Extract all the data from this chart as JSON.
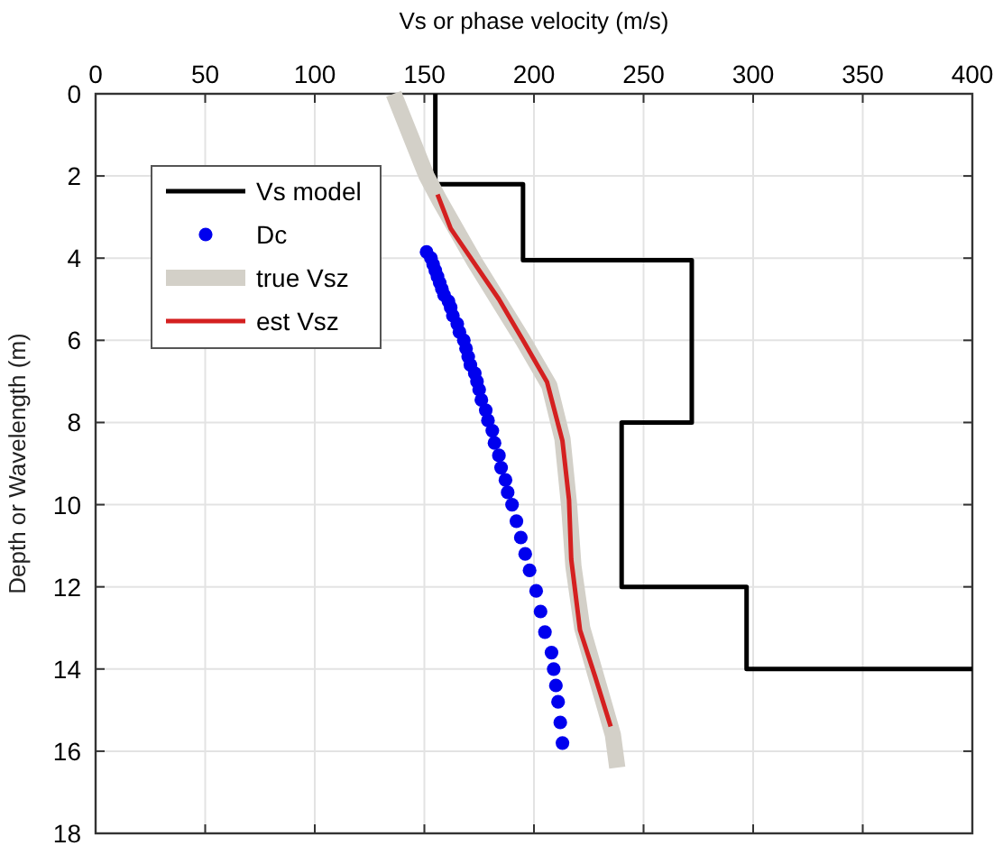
{
  "chart_data": {
    "type": "line",
    "xlabel": "Vs or phase velocity (m/s)",
    "ylabel": "Depth or Wavelength (m)",
    "xlim": [
      0,
      400
    ],
    "xticks": [
      0,
      50,
      100,
      150,
      200,
      250,
      300,
      350,
      400
    ],
    "ylim": [
      18,
      0
    ],
    "yticks": [
      0,
      2,
      4,
      6,
      8,
      10,
      12,
      14,
      16,
      18
    ],
    "grid": true,
    "legend": "top left",
    "series": [
      {
        "name": "Vs model",
        "color": "#000000",
        "x": [
          155,
          155,
          195,
          195,
          272,
          272,
          240,
          240,
          297,
          297,
          400
        ],
        "values": [
          0,
          2.2,
          2.2,
          4.05,
          4.05,
          8,
          8,
          12,
          12,
          14,
          14
        ]
      },
      {
        "name": "Dc",
        "type": "scatter",
        "marker": "circle",
        "color": "#0000ee",
        "x": [
          151,
          153,
          154,
          155,
          156,
          157,
          158,
          159,
          161,
          162,
          163,
          165,
          166,
          168,
          169,
          170,
          171,
          173,
          174,
          175,
          176,
          178,
          179,
          181,
          182,
          184,
          185,
          187,
          188,
          190,
          192,
          194,
          196,
          198,
          201,
          203,
          205,
          208,
          209,
          210,
          211,
          212,
          213
        ],
        "values": [
          3.85,
          4,
          4.15,
          4.3,
          4.45,
          4.6,
          4.75,
          4.9,
          5.05,
          5.2,
          5.4,
          5.6,
          5.8,
          6,
          6.2,
          6.4,
          6.6,
          6.8,
          7,
          7.2,
          7.45,
          7.7,
          7.95,
          8.2,
          8.5,
          8.8,
          9.1,
          9.4,
          9.7,
          10,
          10.4,
          10.8,
          11.2,
          11.6,
          12.1,
          12.6,
          13.1,
          13.6,
          14,
          14.4,
          14.8,
          15.3,
          15.8
        ]
      },
      {
        "name": "true Vsz",
        "color": "#d3d0c8",
        "x": [
          136,
          151,
          157,
          173,
          195,
          207,
          213,
          216,
          218,
          222,
          229,
          236,
          238
        ],
        "values": [
          0,
          2,
          2.6,
          4.1,
          6,
          7.1,
          8.4,
          10,
          11.5,
          13,
          14.3,
          15.6,
          16.4
        ]
      },
      {
        "name": "est Vsz",
        "color": "#d42020",
        "x": [
          156,
          162,
          173,
          184,
          195,
          206,
          213,
          216,
          217,
          221,
          228,
          235
        ],
        "values": [
          2.45,
          3.28,
          4.14,
          5,
          6,
          7.02,
          8.45,
          9.89,
          11.33,
          13.05,
          14.2,
          15.4
        ]
      }
    ]
  }
}
